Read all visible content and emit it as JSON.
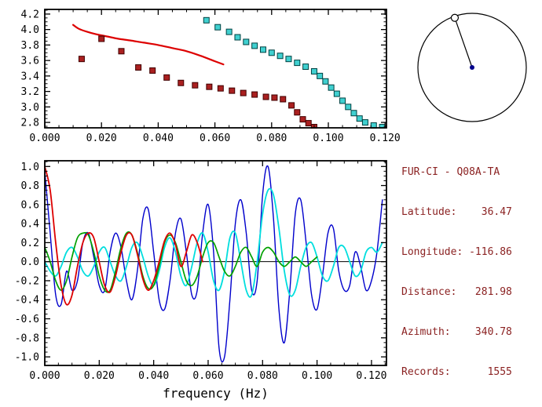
{
  "info_panel": {
    "title": "FUR-CI - Q08A-TA",
    "text_color": "#8b2222",
    "lines": [
      "Latitude:    36.47",
      "Longitude: -116.86",
      "Distance:   281.98",
      "Azimuth:    340.78",
      "Records:      1555"
    ]
  },
  "azimuth_dial": {
    "azimuth_deg": 340.78
  },
  "chart_data": [
    {
      "id": "dispersion",
      "type": "scatter",
      "title": "",
      "xlabel": "",
      "ylabel": "",
      "xlim": [
        0,
        0.1205
      ],
      "ylim": [
        2.73,
        4.26
      ],
      "xticks": [
        0,
        0.02,
        0.04,
        0.06,
        0.08,
        0.1,
        0.12
      ],
      "xtick_labels": [
        "0.000",
        "0.020",
        "0.040",
        "0.060",
        "0.080",
        "0.100",
        "0.120"
      ],
      "yticks": [
        2.8,
        3.0,
        3.2,
        3.4,
        3.6,
        3.8,
        4.0,
        4.2
      ],
      "ytick_labels": [
        "2.8",
        "3.0",
        "3.2",
        "3.4",
        "3.6",
        "3.8",
        "4.0",
        "4.2"
      ],
      "x_minor_step": 0.005,
      "y_minor_step": 0.05,
      "zero_line": false,
      "series": [
        {
          "name": "reference-dispersion-curve",
          "type": "line",
          "color": "#dd0000",
          "width": 2.2,
          "x": [
            0.01,
            0.012,
            0.015,
            0.018,
            0.022,
            0.026,
            0.03,
            0.035,
            0.04,
            0.045,
            0.05,
            0.055,
            0.06,
            0.063
          ],
          "y": [
            4.06,
            4.01,
            3.97,
            3.94,
            3.91,
            3.88,
            3.86,
            3.83,
            3.8,
            3.76,
            3.72,
            3.66,
            3.59,
            3.55
          ]
        },
        {
          "name": "measured-dispersion-points-darkred",
          "type": "scatter",
          "marker": "square",
          "color": "#aa2020",
          "edge": "#400000",
          "size": 7,
          "x": [
            0.013,
            0.02,
            0.027,
            0.033,
            0.038,
            0.043,
            0.048,
            0.053,
            0.058,
            0.062,
            0.066,
            0.07,
            0.074,
            0.078,
            0.081,
            0.084,
            0.087,
            0.089,
            0.091,
            0.093,
            0.095
          ],
          "y": [
            3.62,
            3.88,
            3.72,
            3.51,
            3.47,
            3.38,
            3.31,
            3.28,
            3.26,
            3.24,
            3.21,
            3.18,
            3.16,
            3.13,
            3.12,
            3.1,
            3.02,
            2.93,
            2.84,
            2.79,
            2.74
          ]
        },
        {
          "name": "measured-dispersion-points-cyan",
          "type": "scatter",
          "marker": "square",
          "color": "#40d0d0",
          "edge": "#004040",
          "size": 7,
          "x": [
            0.057,
            0.061,
            0.065,
            0.068,
            0.071,
            0.074,
            0.077,
            0.08,
            0.083,
            0.086,
            0.089,
            0.092,
            0.095,
            0.097,
            0.099,
            0.101,
            0.103,
            0.105,
            0.107,
            0.109,
            0.111,
            0.113,
            0.116,
            0.119
          ],
          "y": [
            4.12,
            4.03,
            3.97,
            3.9,
            3.84,
            3.79,
            3.74,
            3.7,
            3.66,
            3.62,
            3.57,
            3.52,
            3.46,
            3.4,
            3.33,
            3.25,
            3.17,
            3.08,
            3.0,
            2.92,
            2.85,
            2.8,
            2.76,
            2.74
          ]
        }
      ]
    },
    {
      "id": "waveforms",
      "type": "line",
      "title": "",
      "xlabel": "frequency (Hz)",
      "ylabel": "",
      "xlim": [
        0,
        0.1255
      ],
      "ylim": [
        -1.09,
        1.06
      ],
      "xticks": [
        0,
        0.02,
        0.04,
        0.06,
        0.08,
        0.1,
        0.12
      ],
      "xtick_labels": [
        "0.000",
        "0.020",
        "0.040",
        "0.060",
        "0.080",
        "0.100",
        "0.120"
      ],
      "yticks": [
        -1.0,
        -0.8,
        -0.6,
        -0.4,
        -0.2,
        0.0,
        0.2,
        0.4,
        0.6,
        0.8,
        1.0
      ],
      "ytick_labels": [
        "-1.0",
        "-0.8",
        "-0.6",
        "-0.4",
        "-0.2",
        "0.0",
        "0.2",
        "0.4",
        "0.6",
        "0.8",
        "1.0"
      ],
      "x_minor_step": 0.005,
      "y_minor_step": 0.05,
      "zero_line": true,
      "series": [
        {
          "name": "waveform-blue",
          "type": "line",
          "color": "#0000cc",
          "width": 1.4,
          "x0": 0,
          "dx": 0.002,
          "y": [
            0.95,
            0.3,
            -0.35,
            -0.45,
            -0.1,
            -0.3,
            -0.2,
            0.2,
            0.3,
            0.05,
            -0.25,
            -0.3,
            0.1,
            0.3,
            0.15,
            -0.2,
            -0.4,
            -0.1,
            0.45,
            0.55,
            0.1,
            -0.4,
            -0.5,
            -0.2,
            0.3,
            0.45,
            0.1,
            -0.35,
            -0.3,
            0.3,
            0.6,
            0.1,
            -0.9,
            -1.0,
            -0.4,
            0.4,
            0.65,
            0.3,
            -0.3,
            -0.2,
            0.7,
            1.0,
            0.45,
            -0.5,
            -0.85,
            -0.3,
            0.5,
            0.65,
            0.2,
            -0.35,
            -0.5,
            -0.15,
            0.3,
            0.35,
            -0.1,
            -0.3,
            -0.25,
            0.1,
            -0.05,
            -0.3,
            -0.2,
            0.1,
            0.65
          ]
        },
        {
          "name": "waveform-cyan",
          "type": "line",
          "color": "#00dede",
          "width": 1.8,
          "x0": 0,
          "dx": 0.002,
          "y": [
            0.0,
            -0.1,
            -0.15,
            -0.05,
            0.1,
            0.15,
            0.05,
            -0.1,
            -0.15,
            -0.05,
            0.1,
            0.15,
            0.0,
            -0.15,
            -0.2,
            -0.05,
            0.15,
            0.2,
            0.05,
            -0.15,
            -0.25,
            -0.1,
            0.15,
            0.25,
            0.1,
            -0.15,
            -0.25,
            -0.05,
            0.2,
            0.3,
            0.1,
            -0.2,
            -0.3,
            -0.1,
            0.25,
            0.3,
            0.0,
            -0.3,
            -0.35,
            0.0,
            0.5,
            0.75,
            0.7,
            0.35,
            -0.1,
            -0.35,
            -0.3,
            -0.05,
            0.15,
            0.2,
            0.05,
            -0.15,
            -0.2,
            -0.05,
            0.15,
            0.15,
            0.0,
            -0.15,
            -0.1,
            0.1,
            0.15,
            0.1,
            0.2
          ]
        },
        {
          "name": "waveform-green",
          "type": "line",
          "color": "#00a000",
          "width": 1.7,
          "x0": 0,
          "dx": 0.002,
          "y": [
            0.15,
            0.0,
            -0.2,
            -0.3,
            -0.2,
            0.05,
            0.25,
            0.3,
            0.28,
            0.1,
            -0.15,
            -0.3,
            -0.3,
            -0.1,
            0.15,
            0.3,
            0.28,
            0.1,
            -0.15,
            -0.28,
            -0.25,
            -0.05,
            0.2,
            0.28,
            0.2,
            0.0,
            -0.2,
            -0.25,
            -0.15,
            0.05,
            0.2,
            0.2,
            0.05,
            -0.1,
            -0.15,
            -0.05,
            0.1,
            0.15,
            0.05,
            -0.05,
            0.1,
            0.15,
            0.1,
            0.0,
            -0.05,
            0.0,
            0.05,
            0.0,
            -0.05,
            0.0,
            0.05
          ]
        },
        {
          "name": "waveform-red",
          "type": "line",
          "color": "#dd0000",
          "width": 1.8,
          "x0": 0,
          "dx": 0.002,
          "y": [
            1.0,
            0.75,
            0.2,
            -0.25,
            -0.45,
            -0.35,
            -0.05,
            0.2,
            0.3,
            0.25,
            0.0,
            -0.25,
            -0.32,
            -0.15,
            0.1,
            0.28,
            0.28,
            0.08,
            -0.18,
            -0.3,
            -0.2,
            0.0,
            0.22,
            0.3,
            0.18,
            -0.05,
            0.1,
            0.28,
            0.2,
            0.0
          ]
        }
      ]
    }
  ]
}
